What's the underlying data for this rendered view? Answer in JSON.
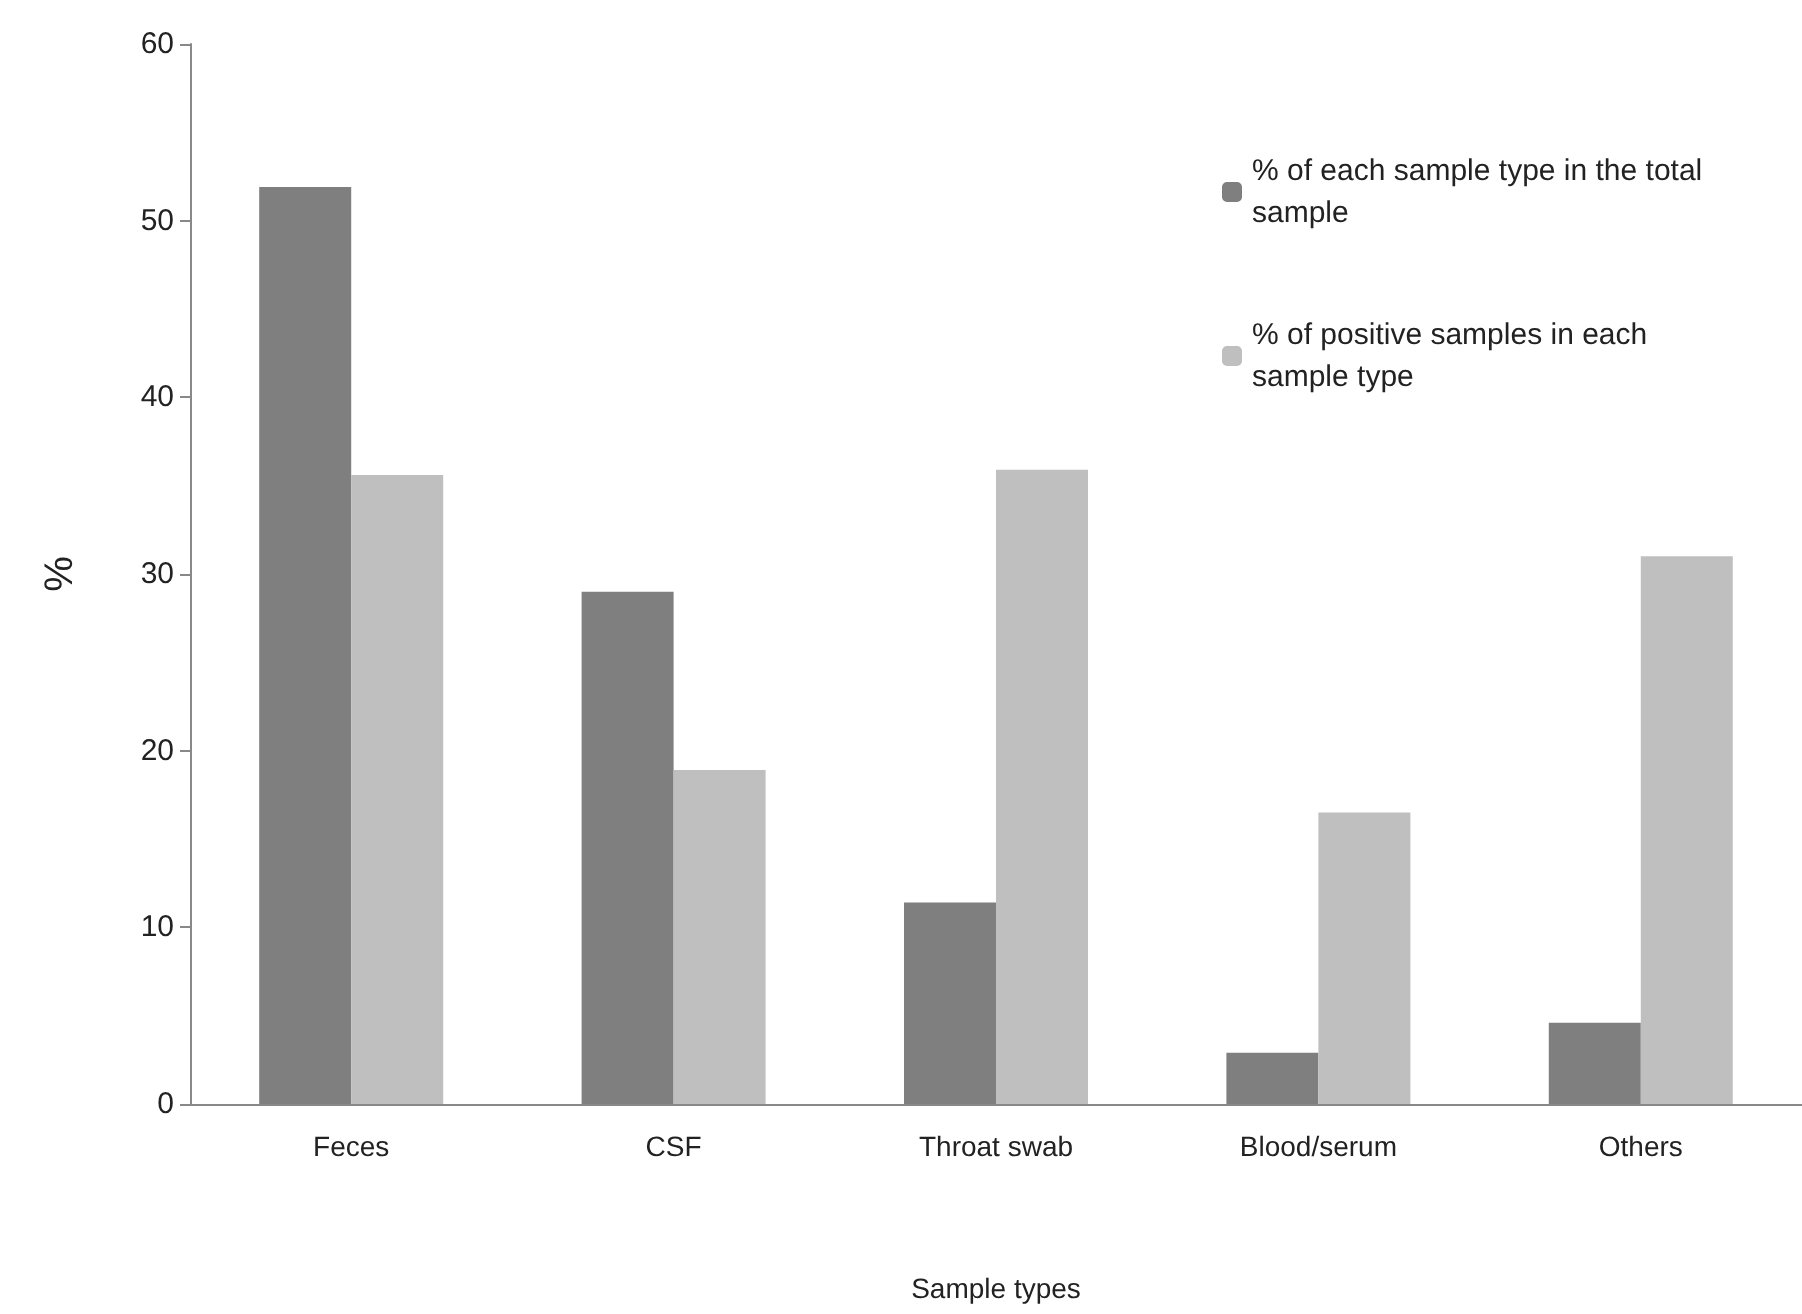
{
  "chart_data": {
    "type": "bar",
    "xlabel": "Sample types",
    "ylabel": "%",
    "categories": [
      "Feces",
      "CSF",
      "Throat swab",
      "Blood/serum",
      "Others"
    ],
    "series": [
      {
        "name": "% of each sample type in the total sample",
        "color": "#7f7f7f",
        "values": [
          51.9,
          29.0,
          11.4,
          2.9,
          4.6
        ]
      },
      {
        "name": "% of positive samples in each sample type",
        "color": "#bfbfbf",
        "values": [
          35.6,
          18.9,
          35.9,
          16.5,
          31.0
        ]
      }
    ],
    "ylim": [
      0,
      60
    ],
    "yticks": [
      0,
      10,
      20,
      30,
      40,
      50,
      60
    ],
    "grid": false,
    "legend": "top right"
  }
}
